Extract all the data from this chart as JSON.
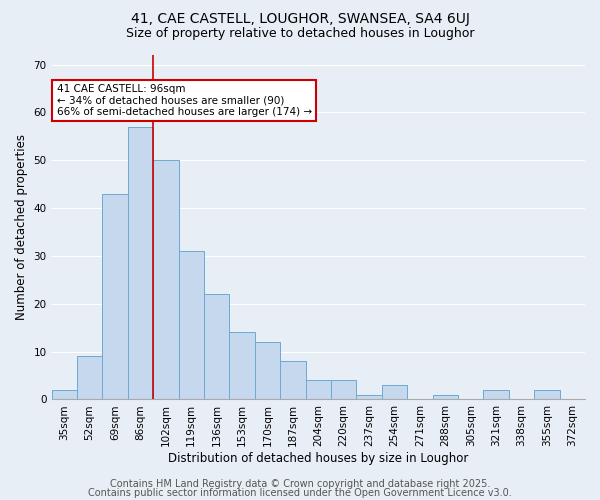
{
  "title1": "41, CAE CASTELL, LOUGHOR, SWANSEA, SA4 6UJ",
  "title2": "Size of property relative to detached houses in Loughor",
  "xlabel": "Distribution of detached houses by size in Loughor",
  "ylabel": "Number of detached properties",
  "footer1": "Contains HM Land Registry data © Crown copyright and database right 2025.",
  "footer2": "Contains public sector information licensed under the Open Government Licence v3.0.",
  "categories": [
    "35sqm",
    "52sqm",
    "69sqm",
    "86sqm",
    "102sqm",
    "119sqm",
    "136sqm",
    "153sqm",
    "170sqm",
    "187sqm",
    "204sqm",
    "220sqm",
    "237sqm",
    "254sqm",
    "271sqm",
    "288sqm",
    "305sqm",
    "321sqm",
    "338sqm",
    "355sqm",
    "372sqm"
  ],
  "values": [
    2,
    9,
    43,
    57,
    50,
    31,
    22,
    14,
    12,
    8,
    4,
    4,
    1,
    3,
    0,
    1,
    0,
    2,
    0,
    2,
    0
  ],
  "bar_color": "#c5d8ee",
  "bar_edge_color": "#6aaad4",
  "red_line_x": 3.5,
  "annotation_text": "41 CAE CASTELL: 96sqm\n← 34% of detached houses are smaller (90)\n66% of semi-detached houses are larger (174) →",
  "annotation_box_color": "#ffffff",
  "annotation_box_edge": "#cc0000",
  "ylim": [
    0,
    72
  ],
  "yticks": [
    0,
    10,
    20,
    30,
    40,
    50,
    60,
    70
  ],
  "background_color": "#e8eef5",
  "plot_background": "#e8eef5",
  "grid_color": "#ffffff",
  "title_fontsize": 10,
  "subtitle_fontsize": 9,
  "axis_label_fontsize": 8.5,
  "tick_fontsize": 7.5,
  "footer_fontsize": 7
}
